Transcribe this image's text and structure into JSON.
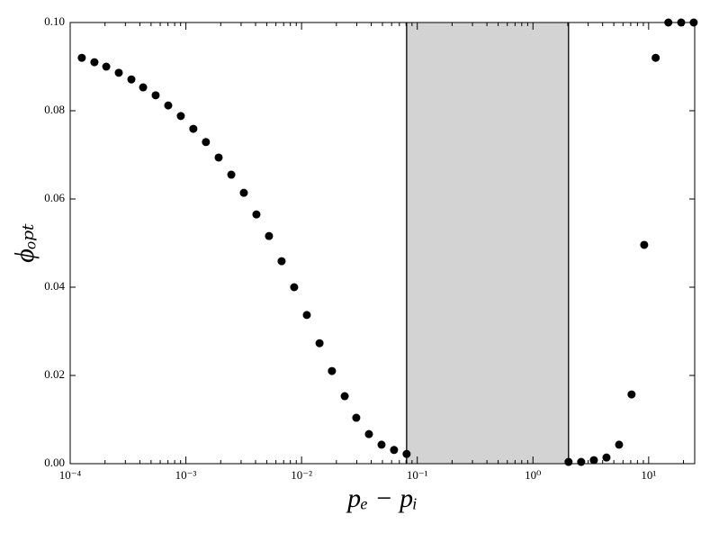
{
  "chart_data": {
    "type": "scatter",
    "x_label": "pₑ − pᵢ",
    "y_label": "ϕₒₚₜ",
    "log_x": true,
    "xlim": [
      0.0001,
      25
    ],
    "ylim": [
      0,
      0.1
    ],
    "xticks": [
      {
        "value": 0.0001,
        "label": "10⁻⁴"
      },
      {
        "value": 0.001,
        "label": "10⁻³"
      },
      {
        "value": 0.01,
        "label": "10⁻²"
      },
      {
        "value": 0.1,
        "label": "10⁻¹"
      },
      {
        "value": 1,
        "label": "10⁰"
      },
      {
        "value": 10,
        "label": "10¹"
      }
    ],
    "yticks": [
      {
        "value": 0,
        "label": "0.00"
      },
      {
        "value": 0.02,
        "label": "0.02"
      },
      {
        "value": 0.04,
        "label": "0.04"
      },
      {
        "value": 0.06,
        "label": "0.06"
      },
      {
        "value": 0.08,
        "label": "0.08"
      },
      {
        "value": 0.1,
        "label": "0.10"
      }
    ],
    "span": [
      0.0809,
      2.03
    ],
    "span_color": "#d3d3d3",
    "color": "#000000",
    "x": [
      0.000126,
      0.000162,
      0.000205,
      0.000263,
      0.000338,
      0.000427,
      0.000548,
      0.000704,
      0.000904,
      0.00116,
      0.00149,
      0.00192,
      0.00247,
      0.00317,
      0.00407,
      0.00523,
      0.00672,
      0.00863,
      0.0111,
      0.0143,
      0.0183,
      0.0236,
      0.0297,
      0.0382,
      0.0491,
      0.063,
      0.0809,
      2.03,
      2.61,
      3.36,
      4.32,
      5.55,
      7.12,
      9.15,
      11.5,
      14.8,
      19.1,
      24.5
    ],
    "values": [
      0.092,
      0.091,
      0.09,
      0.0886,
      0.0871,
      0.0853,
      0.0835,
      0.0812,
      0.0788,
      0.0759,
      0.0729,
      0.0694,
      0.0655,
      0.0614,
      0.0565,
      0.0516,
      0.0459,
      0.04,
      0.0337,
      0.0273,
      0.021,
      0.0153,
      0.0104,
      0.0067,
      0.0043,
      0.0031,
      0.0022,
      0.0004,
      0.0004,
      0.0008,
      0.0014,
      0.0043,
      0.0157,
      0.0496,
      0.092,
      0.1,
      0.1,
      0.1
    ]
  }
}
